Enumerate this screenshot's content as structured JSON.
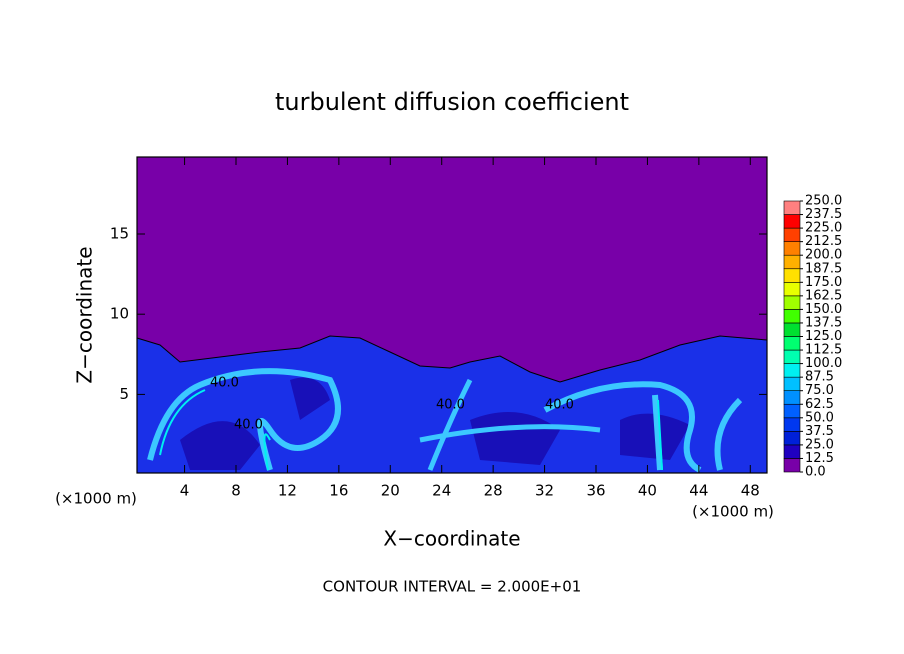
{
  "chart_data": {
    "type": "contour",
    "title": "turbulent diffusion coefficient",
    "xlabel": "X−coordinate",
    "ylabel": "Z−coordinate",
    "xunit": "(×1000 m)",
    "yunit": "(×1000 m)",
    "footnote": "CONTOUR INTERVAL = 2.000E+01",
    "contour_labels": [
      "40.0",
      "40.0",
      "40.0",
      "40.0"
    ],
    "xlim": [
      0.3,
      49.3
    ],
    "ylim": [
      0.1,
      19.8
    ],
    "xticks": [
      4,
      8,
      12,
      16,
      20,
      24,
      28,
      32,
      36,
      40,
      44,
      48
    ],
    "yticks": [
      5,
      10,
      15
    ],
    "levels": [
      {
        "value": 0,
        "label": "0.0"
      },
      {
        "value": 12.5,
        "label": "12.5"
      },
      {
        "value": 25,
        "label": "25.0"
      },
      {
        "value": 37.5,
        "label": "37.5"
      },
      {
        "value": 50,
        "label": "50.0"
      },
      {
        "value": 62.5,
        "label": "62.5"
      },
      {
        "value": 75,
        "label": "75.0"
      },
      {
        "value": 87.5,
        "label": "87.5"
      },
      {
        "value": 100,
        "label": "100.0"
      },
      {
        "value": 112.5,
        "label": "112.5"
      },
      {
        "value": 125,
        "label": "125.0"
      },
      {
        "value": 137.5,
        "label": "137.5"
      },
      {
        "value": 150,
        "label": "150.0"
      },
      {
        "value": 162.5,
        "label": "162.5"
      },
      {
        "value": 175,
        "label": "175.0"
      },
      {
        "value": 187.5,
        "label": "187.5"
      },
      {
        "value": 200,
        "label": "200.0"
      },
      {
        "value": 212.5,
        "label": "212.5"
      },
      {
        "value": 225,
        "label": "225.0"
      },
      {
        "value": 237.5,
        "label": "237.5"
      },
      {
        "value": 250,
        "label": "250.0"
      }
    ],
    "colors": [
      "#7800a8",
      "#2000c0",
      "#0020d8",
      "#0038f0",
      "#0060ff",
      "#0090ff",
      "#00c0ff",
      "#00f0f0",
      "#00ffb0",
      "#00ff70",
      "#00e030",
      "#40ff00",
      "#a0ff00",
      "#e8ff00",
      "#ffe000",
      "#ffb000",
      "#ff8000",
      "#ff4000",
      "#ff0000",
      "#ff8080"
    ]
  }
}
